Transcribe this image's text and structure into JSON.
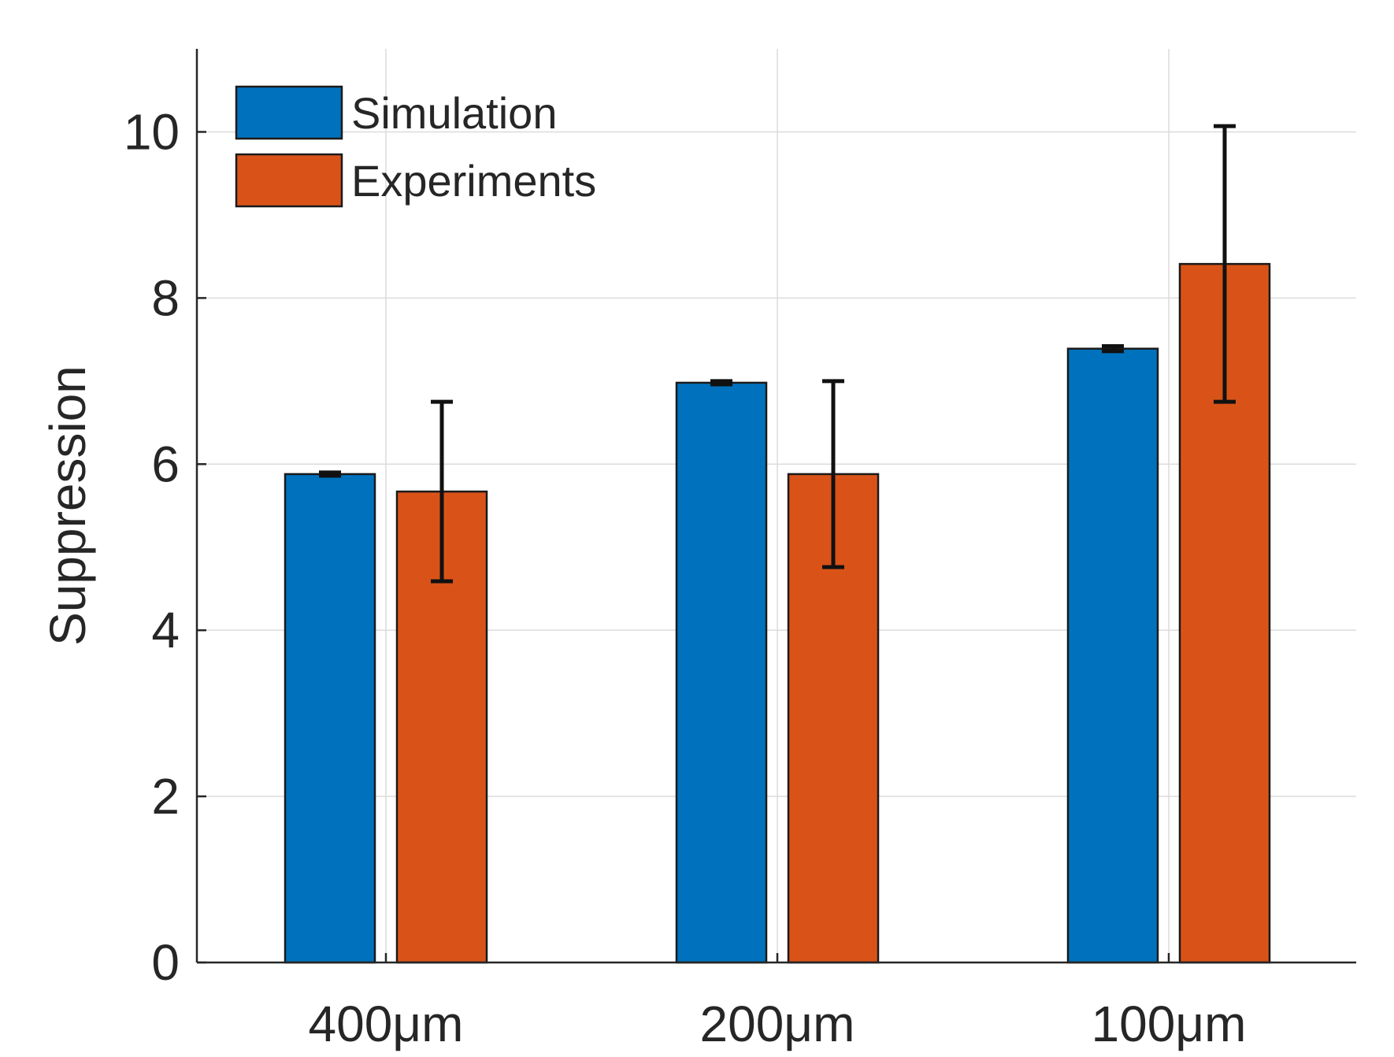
{
  "chart_data": {
    "type": "bar",
    "title": "",
    "xlabel": "",
    "ylabel": "Suppression",
    "categories": [
      "400μm",
      "200μm",
      "100μm"
    ],
    "ylim": [
      0,
      11
    ],
    "yticks": [
      0,
      2,
      4,
      6,
      8,
      10
    ],
    "grid": true,
    "legend_position": "top-left",
    "series": [
      {
        "name": "Simulation",
        "color": "#0072BD",
        "values": [
          5.88,
          6.98,
          7.39
        ],
        "errors": [
          0.02,
          0.02,
          0.03
        ]
      },
      {
        "name": "Experiments",
        "color": "#D95319",
        "values": [
          5.67,
          5.88,
          8.41
        ],
        "errors": [
          1.08,
          1.12,
          1.66
        ]
      }
    ]
  }
}
